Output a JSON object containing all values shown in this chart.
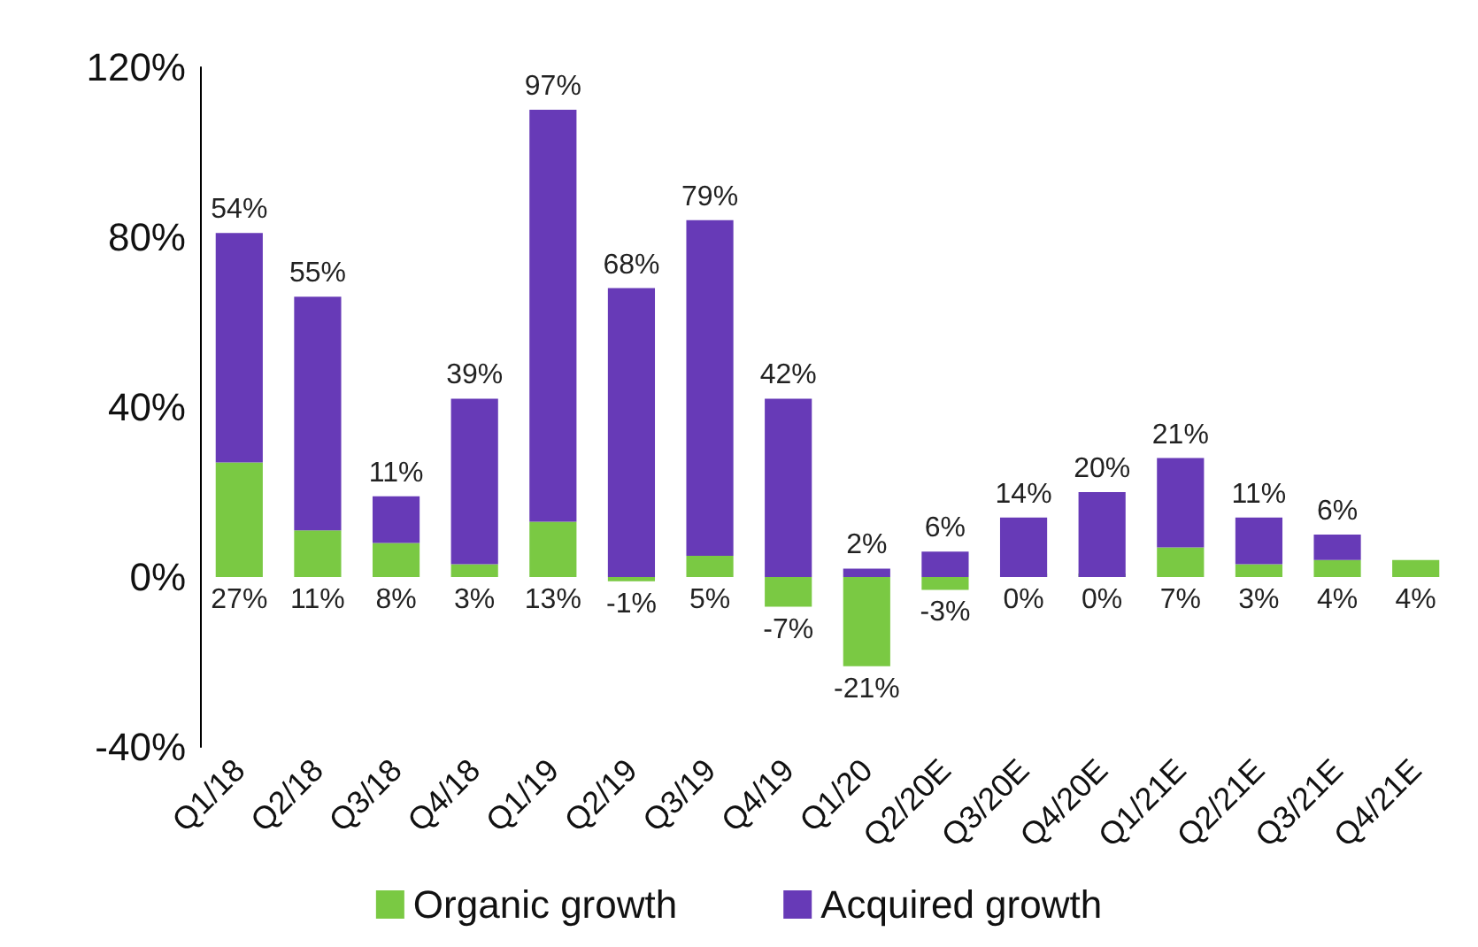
{
  "chart_data": {
    "type": "bar",
    "stacked": true,
    "categories": [
      "Q1/18",
      "Q2/18",
      "Q3/18",
      "Q4/18",
      "Q1/19",
      "Q2/19",
      "Q3/19",
      "Q4/19",
      "Q1/20",
      "Q2/20E",
      "Q3/20E",
      "Q4/20E",
      "Q1/21E",
      "Q2/21E",
      "Q3/21E",
      "Q4/21E"
    ],
    "series": [
      {
        "name": "Organic growth",
        "color": "#7ac943",
        "values": [
          27,
          11,
          8,
          3,
          13,
          -1,
          5,
          -7,
          -21,
          -3,
          0,
          0,
          7,
          3,
          4,
          4
        ],
        "value_labels": [
          "27%",
          "11%",
          "8%",
          "3%",
          "13%",
          "-1%",
          "5%",
          "-7%",
          "-21%",
          "-3%",
          "0%",
          "0%",
          "7%",
          "3%",
          "4%",
          "4%"
        ]
      },
      {
        "name": "Acquired growth",
        "color": "#673ab7",
        "values": [
          54,
          55,
          11,
          39,
          97,
          68,
          79,
          42,
          2,
          6,
          14,
          20,
          21,
          11,
          6,
          null
        ],
        "value_labels": [
          "54%",
          "55%",
          "11%",
          "39%",
          "97%",
          "68%",
          "79%",
          "42%",
          "2%",
          "6%",
          "14%",
          "20%",
          "21%",
          "11%",
          "6%",
          null
        ]
      }
    ],
    "ylim": [
      -40,
      120
    ],
    "yticks": [
      {
        "value": -40,
        "label": "-40%"
      },
      {
        "value": 0,
        "label": "0%"
      },
      {
        "value": 40,
        "label": "40%"
      },
      {
        "value": 80,
        "label": "80%"
      },
      {
        "value": 120,
        "label": "120%"
      }
    ],
    "grid": false,
    "legend": "bottom"
  }
}
